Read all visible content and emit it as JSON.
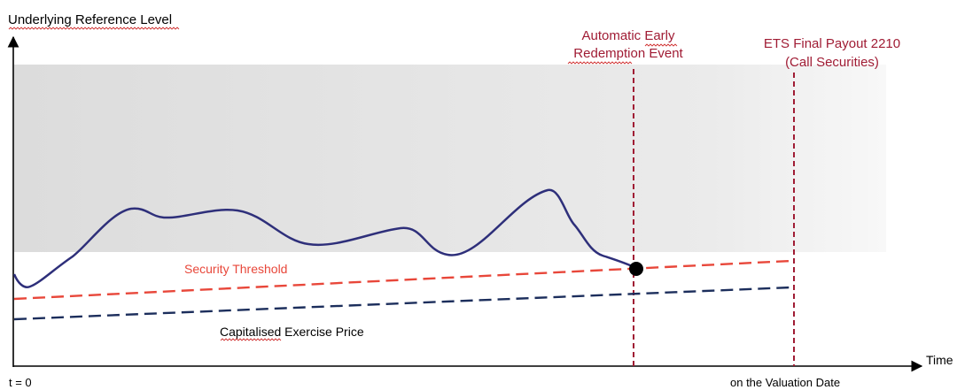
{
  "labels": {
    "y_axis": "Underlying Reference Level",
    "x_axis": "Time",
    "t0": "t = 0",
    "valuation": "on the Valuation Date",
    "threshold": "Security Threshold",
    "exercise": "Capitalised Exercise Price",
    "event_line1": "Automatic Early",
    "event_line2": "Redemption Event",
    "payout_line1": "ETS Final Payout 2210",
    "payout_line2": "(Call Securities)"
  },
  "colors": {
    "band": "#e6e6e6",
    "path": "#2e2f7a",
    "threshold": "#e8473a",
    "exercise": "#1c2e5c",
    "event_lines": "#a01c34",
    "axis": "#000000",
    "text": "#000000"
  }
}
